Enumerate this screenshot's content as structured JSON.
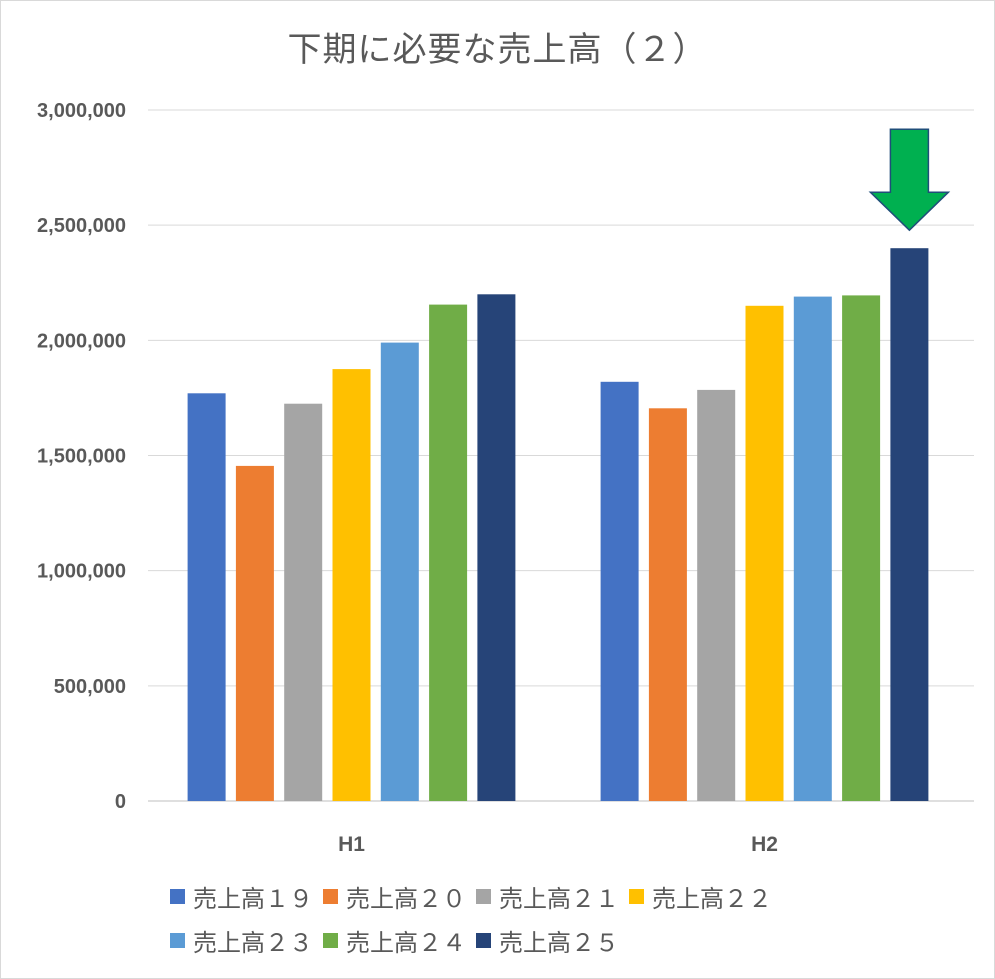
{
  "chart_data": {
    "type": "bar",
    "title": "下期に必要な売上高（２）",
    "categories": [
      "H1",
      "H2"
    ],
    "ylim": [
      0,
      3000000
    ],
    "yticks": [
      {
        "value": 0,
        "label": "0"
      },
      {
        "value": 500000,
        "label": "500,000"
      },
      {
        "value": 1000000,
        "label": "1,000,000"
      },
      {
        "value": 1500000,
        "label": "1,500,000"
      },
      {
        "value": 2000000,
        "label": "2,000,000"
      },
      {
        "value": 2500000,
        "label": "2,500,000"
      },
      {
        "value": 3000000,
        "label": "3,000,000"
      }
    ],
    "grid": true,
    "legend_position": "bottom",
    "series": [
      {
        "name": "売上高１９",
        "color": "#4472C4",
        "values": [
          1770000,
          1820000
        ]
      },
      {
        "name": "売上高２０",
        "color": "#ED7D31",
        "values": [
          1455000,
          1705000
        ]
      },
      {
        "name": "売上高２１",
        "color": "#A5A5A5",
        "values": [
          1725000,
          1785000
        ]
      },
      {
        "name": "売上高２２",
        "color": "#FFC000",
        "values": [
          1875000,
          2150000
        ]
      },
      {
        "name": "売上高２３",
        "color": "#5B9BD5",
        "values": [
          1990000,
          2190000
        ]
      },
      {
        "name": "売上高２４",
        "color": "#70AD47",
        "values": [
          2155000,
          2195000
        ]
      },
      {
        "name": "売上高２５",
        "color": "#264478",
        "values": [
          2200000,
          2400000
        ]
      }
    ],
    "annotation": {
      "type": "down-arrow",
      "target_series": "売上高２５",
      "target_category": "H2",
      "color": "#00B050"
    }
  }
}
